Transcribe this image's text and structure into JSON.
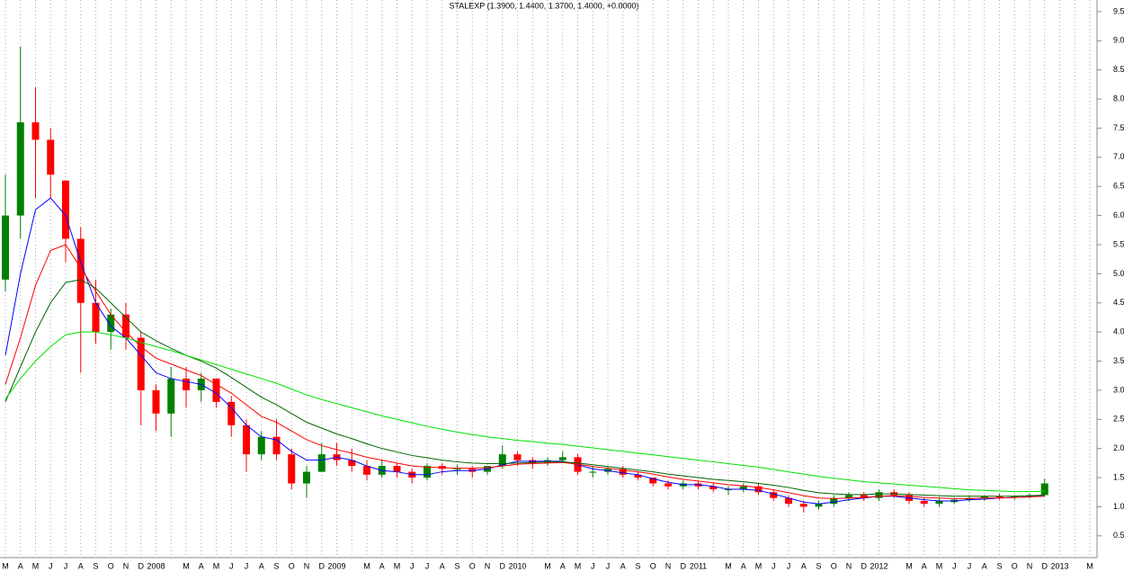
{
  "chart_data": {
    "type": "candlestick",
    "title": "STALEXP (1.3900, 1.4400, 1.3700, 1.4000, +0.0000)",
    "categories": [
      "M",
      "A",
      "M",
      "J",
      "J",
      "A",
      "S",
      "O",
      "N",
      "D",
      "2008",
      null,
      "M",
      "A",
      "M",
      "J",
      "J",
      "A",
      "S",
      "O",
      "N",
      "D",
      "2009",
      null,
      "M",
      "A",
      "M",
      "J",
      "J",
      "A",
      "S",
      "O",
      "N",
      "D",
      "2010",
      null,
      "M",
      "A",
      "M",
      "J",
      "J",
      "A",
      "S",
      "O",
      "N",
      "D",
      "2011",
      null,
      "M",
      "A",
      "M",
      "J",
      "J",
      "A",
      "S",
      "O",
      "N",
      "D",
      "2012",
      null,
      "M",
      "A",
      "M",
      "J",
      "J",
      "A",
      "S",
      "O",
      "N",
      "D",
      "2013",
      null,
      "M"
    ],
    "ohlc": {
      "open": [
        4.9,
        6.0,
        7.6,
        7.3,
        6.6,
        5.6,
        4.5,
        4.0,
        4.3,
        3.9,
        3.0,
        2.6,
        3.2,
        3.0,
        3.2,
        2.8,
        2.4,
        1.9,
        2.2,
        1.9,
        1.4,
        1.6,
        1.9,
        1.8,
        1.7,
        1.55,
        1.7,
        1.6,
        1.5,
        1.7,
        1.65,
        1.65,
        1.6,
        1.7,
        1.9,
        1.8,
        1.75,
        1.8,
        1.85,
        1.6,
        1.6,
        1.65,
        1.55,
        1.5,
        1.4,
        1.35,
        1.4,
        1.35,
        1.3,
        1.3,
        1.35,
        1.25,
        1.15,
        1.05,
        1.0,
        1.05,
        1.15,
        1.2,
        1.15,
        1.25,
        1.2,
        1.1,
        1.05,
        1.08,
        1.12,
        1.15,
        1.18,
        1.16,
        1.18,
        1.2,
        null,
        null,
        null
      ],
      "high": [
        6.7,
        8.9,
        8.2,
        7.5,
        6.6,
        5.8,
        4.9,
        4.4,
        4.5,
        4.0,
        3.1,
        3.4,
        3.4,
        3.3,
        3.2,
        2.9,
        2.5,
        2.3,
        2.5,
        2.0,
        1.7,
        2.1,
        2.1,
        2.0,
        1.8,
        1.8,
        1.75,
        1.65,
        1.75,
        1.75,
        1.72,
        1.7,
        1.7,
        2.05,
        1.95,
        1.85,
        1.85,
        1.95,
        1.9,
        1.7,
        1.7,
        1.7,
        1.6,
        1.5,
        1.45,
        1.45,
        1.45,
        1.4,
        1.35,
        1.4,
        1.4,
        1.3,
        1.2,
        1.1,
        1.1,
        1.2,
        1.25,
        1.25,
        1.3,
        1.3,
        1.25,
        1.15,
        1.15,
        1.15,
        1.2,
        1.2,
        1.22,
        1.2,
        1.22,
        1.48,
        null,
        null,
        null
      ],
      "low": [
        4.7,
        5.6,
        6.3,
        6.3,
        5.2,
        3.3,
        3.8,
        3.7,
        3.7,
        2.4,
        2.3,
        2.2,
        2.7,
        2.8,
        2.7,
        2.2,
        1.6,
        1.8,
        1.8,
        1.3,
        1.15,
        1.6,
        1.7,
        1.6,
        1.45,
        1.5,
        1.5,
        1.4,
        1.45,
        1.55,
        1.55,
        1.5,
        1.55,
        1.65,
        1.7,
        1.65,
        1.7,
        1.75,
        1.55,
        1.5,
        1.55,
        1.5,
        1.45,
        1.35,
        1.3,
        1.3,
        1.3,
        1.25,
        1.2,
        1.25,
        1.2,
        1.1,
        1.0,
        0.9,
        0.95,
        1.0,
        1.1,
        1.1,
        1.1,
        1.15,
        1.05,
        1.0,
        1.0,
        1.05,
        1.08,
        1.1,
        1.12,
        1.12,
        1.14,
        1.18,
        null,
        null,
        null
      ],
      "close": [
        6.0,
        7.6,
        7.3,
        6.7,
        5.6,
        4.5,
        4.0,
        4.3,
        3.9,
        3.0,
        2.6,
        3.2,
        3.0,
        3.2,
        2.8,
        2.4,
        1.9,
        2.2,
        1.9,
        1.4,
        1.6,
        1.9,
        1.8,
        1.7,
        1.55,
        1.7,
        1.6,
        1.5,
        1.7,
        1.65,
        1.65,
        1.6,
        1.7,
        1.9,
        1.8,
        1.75,
        1.8,
        1.85,
        1.6,
        1.6,
        1.65,
        1.55,
        1.5,
        1.4,
        1.35,
        1.4,
        1.35,
        1.3,
        1.3,
        1.35,
        1.25,
        1.15,
        1.05,
        1.0,
        1.05,
        1.15,
        1.2,
        1.15,
        1.25,
        1.2,
        1.1,
        1.05,
        1.1,
        1.12,
        1.15,
        1.18,
        1.16,
        1.18,
        1.2,
        1.4,
        null,
        null,
        null
      ]
    },
    "up_color": "#008000",
    "down_color": "#ff0000",
    "lines": [
      {
        "color": "#0000ff",
        "values": [
          3.6,
          5.0,
          6.1,
          6.3,
          6.0,
          5.2,
          4.5,
          4.1,
          3.9,
          3.6,
          3.3,
          3.2,
          3.15,
          3.1,
          2.95,
          2.7,
          2.4,
          2.2,
          2.15,
          1.95,
          1.8,
          1.8,
          1.85,
          1.8,
          1.7,
          1.62,
          1.6,
          1.55,
          1.55,
          1.6,
          1.62,
          1.62,
          1.65,
          1.72,
          1.78,
          1.78,
          1.78,
          1.78,
          1.72,
          1.65,
          1.62,
          1.58,
          1.55,
          1.48,
          1.42,
          1.38,
          1.38,
          1.35,
          1.3,
          1.3,
          1.28,
          1.22,
          1.15,
          1.08,
          1.05,
          1.08,
          1.12,
          1.15,
          1.18,
          1.18,
          1.15,
          1.12,
          1.1,
          1.1,
          1.12,
          1.13,
          1.15,
          1.16,
          1.17,
          1.2,
          null,
          null,
          null
        ]
      },
      {
        "color": "#ff0000",
        "values": [
          3.1,
          3.9,
          4.8,
          5.4,
          5.5,
          5.1,
          4.7,
          4.3,
          4.0,
          3.75,
          3.55,
          3.45,
          3.35,
          3.25,
          3.1,
          2.95,
          2.75,
          2.55,
          2.45,
          2.3,
          2.15,
          2.05,
          1.98,
          1.92,
          1.85,
          1.8,
          1.75,
          1.7,
          1.68,
          1.67,
          1.66,
          1.66,
          1.67,
          1.7,
          1.73,
          1.74,
          1.75,
          1.76,
          1.73,
          1.69,
          1.66,
          1.63,
          1.6,
          1.56,
          1.51,
          1.47,
          1.44,
          1.41,
          1.38,
          1.36,
          1.33,
          1.29,
          1.24,
          1.19,
          1.15,
          1.14,
          1.15,
          1.16,
          1.18,
          1.19,
          1.18,
          1.16,
          1.15,
          1.14,
          1.14,
          1.15,
          1.15,
          1.16,
          1.17,
          1.18,
          null,
          null,
          null
        ]
      },
      {
        "color": "#006400",
        "values": [
          2.8,
          3.4,
          4.0,
          4.5,
          4.85,
          4.9,
          4.75,
          4.5,
          4.25,
          4.0,
          3.85,
          3.72,
          3.6,
          3.5,
          3.38,
          3.22,
          3.05,
          2.88,
          2.75,
          2.6,
          2.45,
          2.35,
          2.25,
          2.17,
          2.08,
          2.0,
          1.94,
          1.88,
          1.84,
          1.8,
          1.77,
          1.75,
          1.74,
          1.74,
          1.75,
          1.76,
          1.77,
          1.77,
          1.75,
          1.72,
          1.69,
          1.66,
          1.63,
          1.6,
          1.56,
          1.53,
          1.5,
          1.47,
          1.45,
          1.43,
          1.4,
          1.37,
          1.33,
          1.28,
          1.24,
          1.22,
          1.21,
          1.21,
          1.22,
          1.22,
          1.21,
          1.2,
          1.19,
          1.18,
          1.18,
          1.18,
          1.18,
          1.18,
          1.19,
          1.2,
          null,
          null,
          null
        ]
      },
      {
        "color": "#00e000",
        "values": [
          2.85,
          3.2,
          3.5,
          3.75,
          3.95,
          4.0,
          4.0,
          3.95,
          3.9,
          3.82,
          3.75,
          3.68,
          3.6,
          3.52,
          3.44,
          3.36,
          3.28,
          3.2,
          3.12,
          3.02,
          2.92,
          2.84,
          2.77,
          2.7,
          2.63,
          2.56,
          2.5,
          2.44,
          2.38,
          2.33,
          2.28,
          2.24,
          2.2,
          2.17,
          2.14,
          2.12,
          2.09,
          2.07,
          2.04,
          2.01,
          1.98,
          1.95,
          1.92,
          1.89,
          1.86,
          1.83,
          1.8,
          1.77,
          1.74,
          1.71,
          1.68,
          1.64,
          1.6,
          1.56,
          1.52,
          1.49,
          1.46,
          1.43,
          1.41,
          1.39,
          1.37,
          1.35,
          1.33,
          1.31,
          1.29,
          1.28,
          1.27,
          1.26,
          1.26,
          1.27,
          null,
          null,
          null
        ]
      }
    ],
    "ylim": [
      0.25,
      9.7
    ],
    "yticks": [
      0.5,
      {
        "value": 1,
        "label": "1.0"
      },
      1.5,
      {
        "value": 2,
        "label": "2.0"
      },
      2.5,
      {
        "value": 3,
        "label": "3.0"
      },
      3.5,
      {
        "value": 4,
        "label": "4.0"
      },
      4.5,
      {
        "value": 5,
        "label": "5.0"
      },
      5.5,
      {
        "value": 6,
        "label": "6.0"
      },
      6.5,
      {
        "value": 7,
        "label": "7.0"
      },
      7.5,
      {
        "value": 8,
        "label": "8.0"
      },
      8.5,
      {
        "value": 9,
        "label": "9.0"
      },
      9.5
    ]
  }
}
